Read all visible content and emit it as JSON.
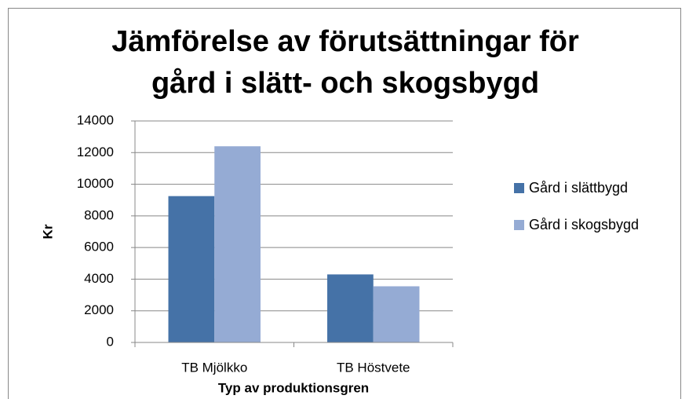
{
  "chart_data": {
    "type": "bar",
    "title": [
      "Jämförelse av förutsättningar för",
      "gård i slätt- och skogsbygd"
    ],
    "x_label": "Typ av produktionsgren",
    "y_label": "Kr",
    "categories": [
      "TB Mjölkko",
      "TB Höstvete"
    ],
    "series": [
      {
        "name": "Gård i slättbygd",
        "color": "#4572a7",
        "values": [
          9250,
          4300
        ]
      },
      {
        "name": "Gård i skogsbygd",
        "color": "#95abd4",
        "values": [
          12400,
          3550
        ]
      }
    ],
    "ylim": [
      0,
      14000
    ],
    "yticks": [
      0,
      2000,
      4000,
      6000,
      8000,
      10000,
      12000,
      14000
    ],
    "grid": true,
    "legend": "right"
  }
}
